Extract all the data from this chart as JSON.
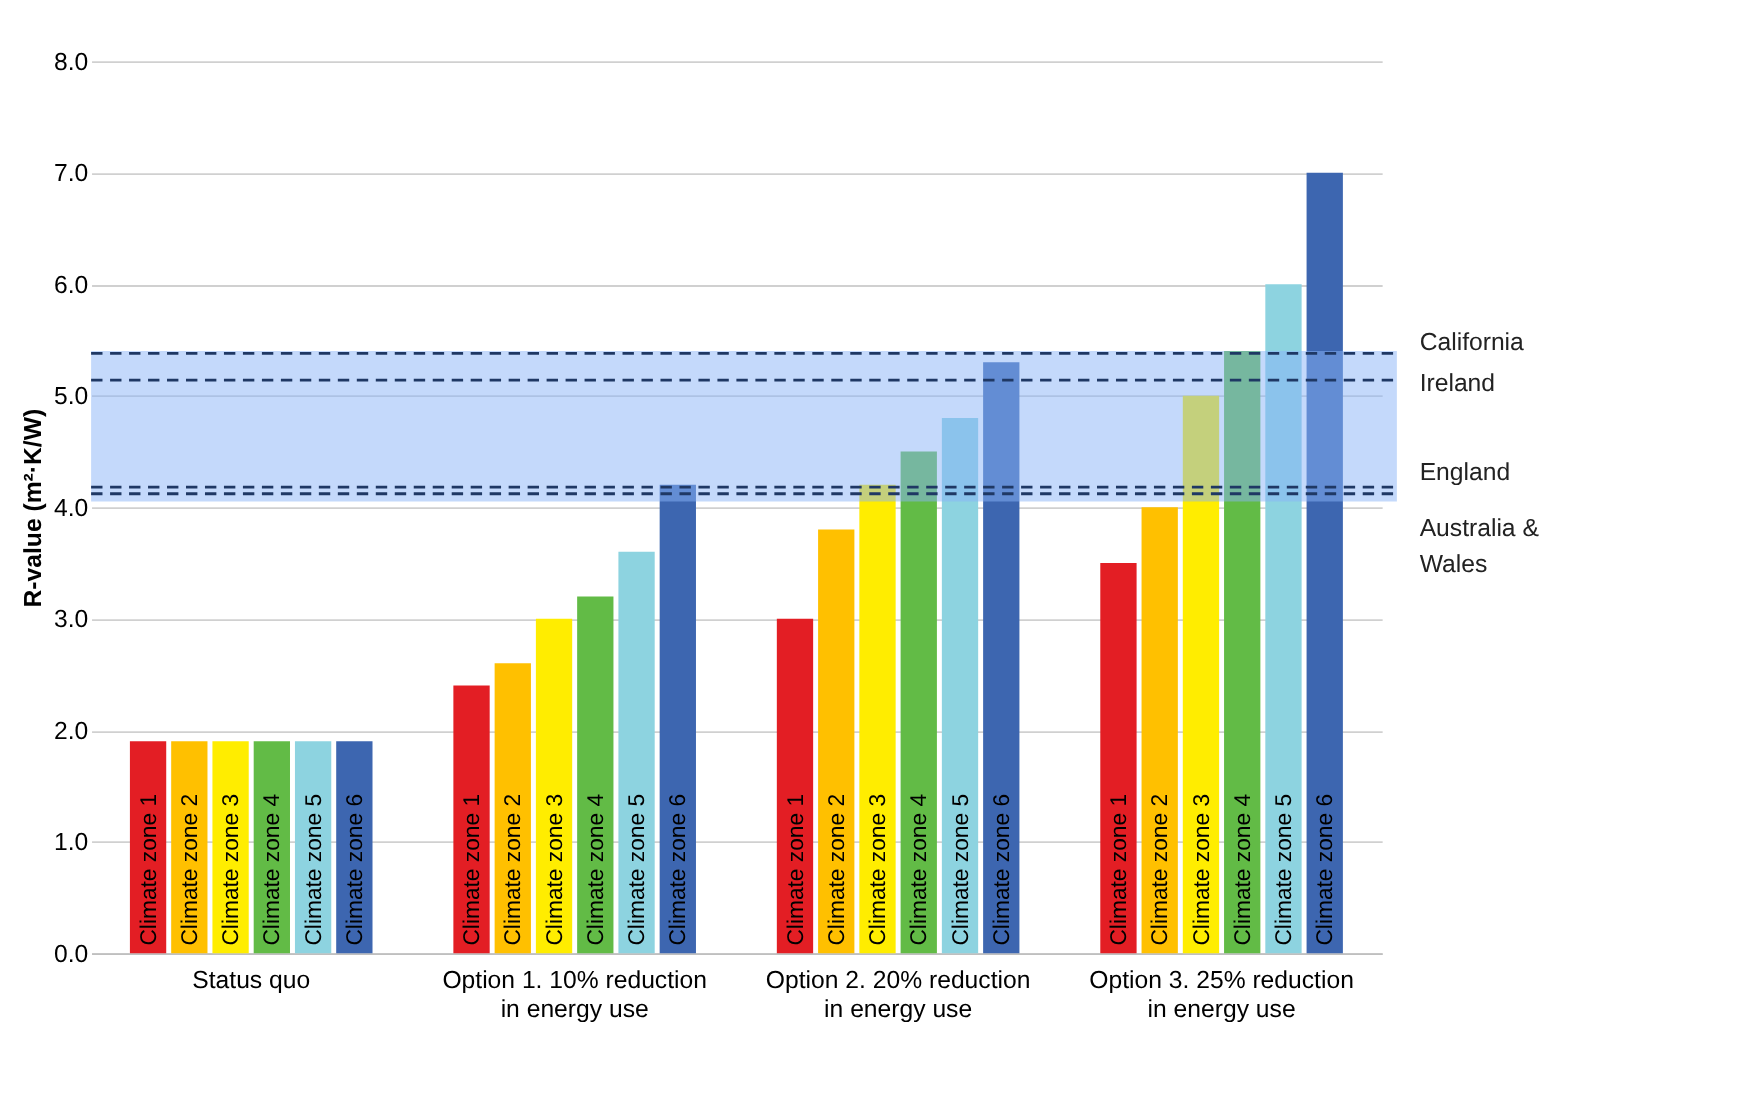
{
  "chart_data": {
    "type": "bar",
    "ylabel": "R-value (m²·K/W)",
    "categories": [
      "Status quo",
      "Option 1. 10% reduction\nin energy use",
      "Option 2. 20% reduction\nin energy use",
      "Option 3. 25% reduction\nin energy use"
    ],
    "series": [
      {
        "name": "Climate zone 1",
        "color": "#e31e24",
        "values": [
          1.9,
          2.4,
          3.0,
          3.5
        ]
      },
      {
        "name": "Climate zone 2",
        "color": "#ffc000",
        "values": [
          1.9,
          2.6,
          3.8,
          4.0
        ]
      },
      {
        "name": "Climate zone 3",
        "color": "#ffed00",
        "values": [
          1.9,
          3.0,
          4.2,
          5.0
        ]
      },
      {
        "name": "Climate zone 4",
        "color": "#62bb46",
        "values": [
          1.9,
          3.2,
          4.5,
          5.4
        ]
      },
      {
        "name": "Climate zone 5",
        "color": "#8dd3e0",
        "values": [
          1.9,
          3.6,
          4.8,
          6.0
        ]
      },
      {
        "name": "Climate zone 6",
        "color": "#3d66b0",
        "values": [
          1.9,
          4.2,
          5.3,
          7.0
        ]
      }
    ],
    "ylim": [
      0,
      8
    ],
    "yticks": [
      {
        "value": 0,
        "label": "0.0"
      },
      {
        "value": 1,
        "label": "1.0"
      },
      {
        "value": 2,
        "label": "2.0"
      },
      {
        "value": 3,
        "label": "3.0"
      },
      {
        "value": 4,
        "label": "4.0"
      },
      {
        "value": 5,
        "label": "5.0"
      },
      {
        "value": 6,
        "label": "6.0"
      },
      {
        "value": 7,
        "label": "7.0"
      },
      {
        "value": 8,
        "label": "8.0"
      }
    ],
    "grid": "y",
    "legend": false,
    "bands": [
      {
        "axis": "y",
        "from": 4.05,
        "to": 5.4,
        "color": "#8ab4f8"
      }
    ],
    "ref_lines": [
      {
        "axis": "y",
        "value": 5.38,
        "label": "California",
        "color": "#1f3864",
        "line_style": "dashed"
      },
      {
        "axis": "y",
        "value": 5.14,
        "label": "Ireland",
        "color": "#1f3864",
        "line_style": "dashed"
      },
      {
        "axis": "y",
        "value": 4.18,
        "label": "England",
        "color": "#1f3864",
        "line_style": "dashed"
      },
      {
        "axis": "y",
        "value": 4.12,
        "label": "Australia &\nWales",
        "color": "#1f3864",
        "line_style": "dashed"
      }
    ]
  }
}
